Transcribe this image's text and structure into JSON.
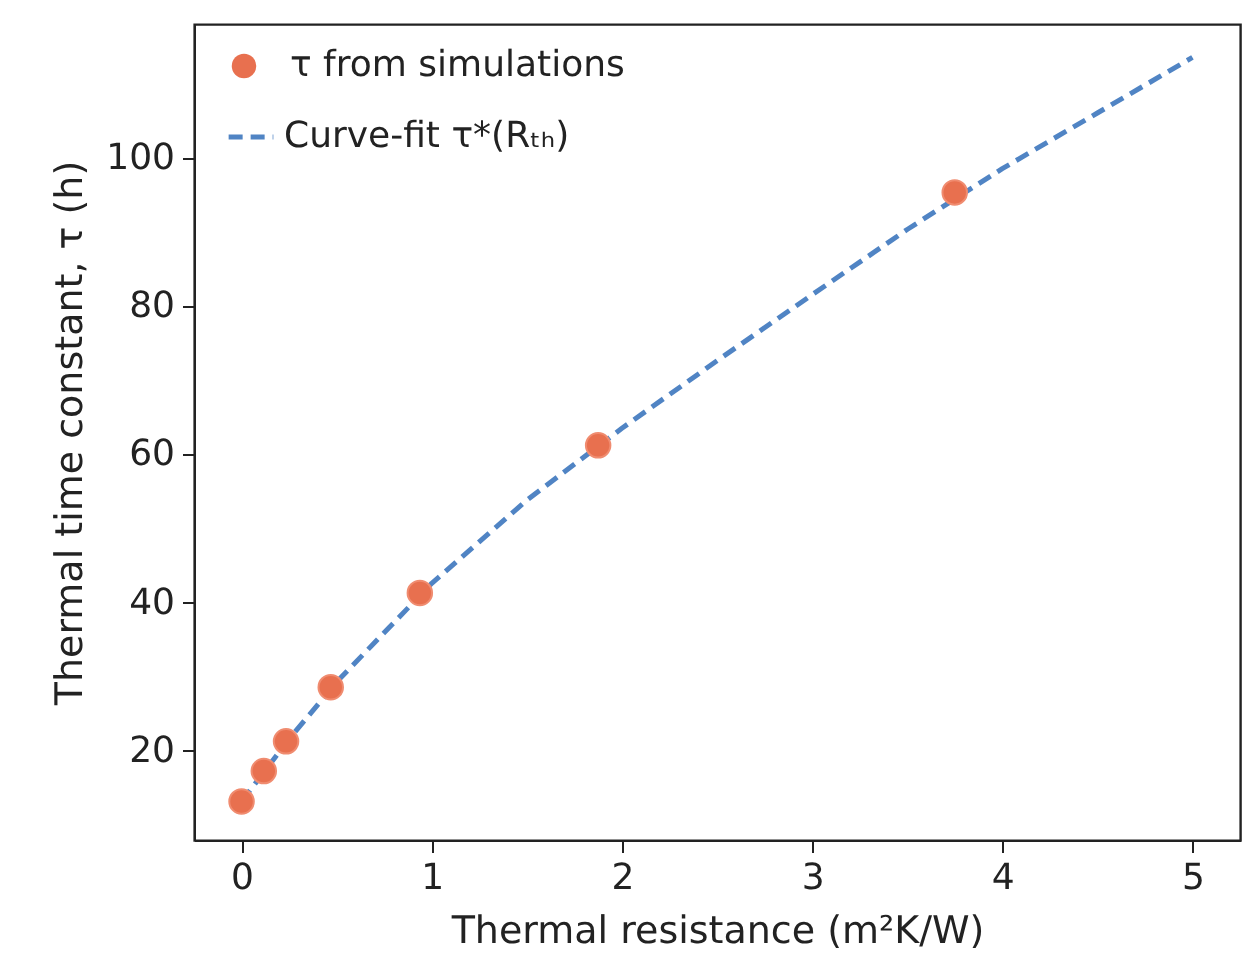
{
  "chart_data": {
    "type": "scatter",
    "xlabel": "Thermal resistance (m²K/W)",
    "ylabel": "Thermal time constant, τ (h)",
    "xlim": [
      -0.25,
      5.25
    ],
    "xticks": [
      0,
      1,
      2,
      3,
      4,
      5
    ],
    "ylim": [
      8,
      118
    ],
    "yticks": [
      20,
      40,
      60,
      80,
      100
    ],
    "grid": false,
    "legend": "top left",
    "series": [
      {
        "name": "τ from simulations",
        "marker": "circle",
        "color": "#e8704f",
        "x": [
          0,
          0.117,
          0.234,
          0.469,
          0.9375,
          1.875,
          3.75
        ],
        "values": [
          13.2,
          17.3,
          21.3,
          28.6,
          41.3,
          61.2,
          95.3
        ]
      },
      {
        "name": "Curve-fit τ*(Rₜₕ)",
        "type": "line",
        "line_style": "dashed",
        "color": "#5084c4",
        "x": [
          0,
          0.25,
          0.5,
          1,
          1.5,
          2,
          2.5,
          3,
          3.5,
          4,
          4.5,
          5
        ],
        "values": [
          13.2,
          21.6,
          29.3,
          42.6,
          53.8,
          63.5,
          72.6,
          81.5,
          90.3,
          98.5,
          106,
          113.5
        ]
      }
    ]
  }
}
